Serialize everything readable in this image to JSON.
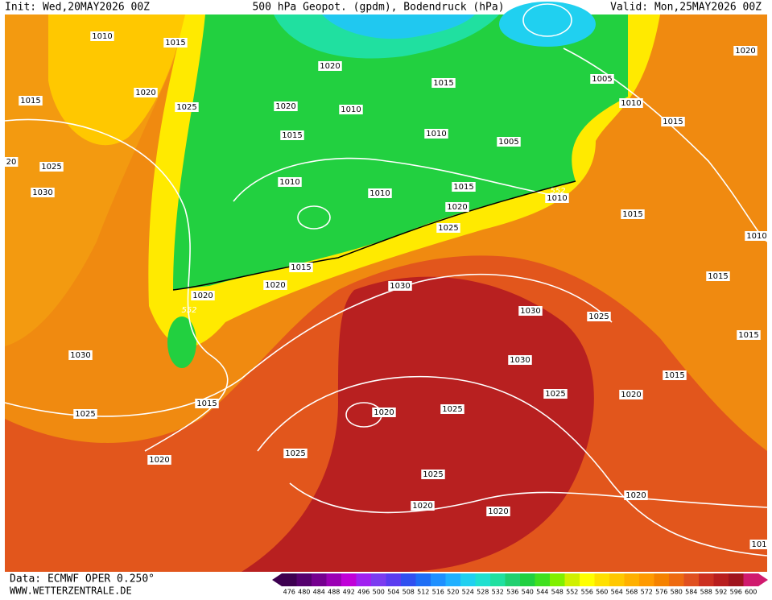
{
  "header": {
    "init": "Init: Wed,20MAY2026 00Z",
    "title": "500 hPa Geopot. (gpdm), Bodendruck (hPa)",
    "valid": "Valid: Mon,25MAY2026 00Z"
  },
  "isobar_labels": [
    1010,
    1015,
    1020,
    1015,
    1025,
    1020,
    1015,
    1020,
    1010,
    1015,
    1010,
    1005,
    1005,
    1010,
    1015,
    1020,
    20,
    1025,
    1030,
    1010,
    1010,
    1015,
    1010,
    1020,
    1025,
    1015,
    1010,
    1015,
    1020,
    1020,
    1030,
    1015,
    1030,
    1025,
    1015,
    1030,
    1015,
    1030,
    1025,
    1020,
    1015,
    1025,
    1020,
    1025,
    1025,
    1020,
    1025,
    1020,
    1020,
    1020,
    101
  ],
  "geopot_labels": [
    552,
    552
  ],
  "scale": {
    "values": [
      476,
      480,
      484,
      488,
      492,
      496,
      500,
      504,
      508,
      512,
      516,
      520,
      524,
      528,
      532,
      536,
      540,
      544,
      548,
      552,
      556,
      560,
      564,
      568,
      572,
      576,
      580,
      584,
      588,
      592,
      596,
      600
    ],
    "colors": [
      "#3d0050",
      "#55006e",
      "#75008f",
      "#9b00b4",
      "#c000d8",
      "#a020f0",
      "#7b3cf0",
      "#5a3cf0",
      "#3050f0",
      "#1e6ef5",
      "#1e90ff",
      "#20b0ff",
      "#20d0f0",
      "#20e0d0",
      "#20e0a0",
      "#20d070",
      "#20d040",
      "#40e020",
      "#80f000",
      "#d0f000",
      "#ffff00",
      "#ffe000",
      "#ffc800",
      "#ffb000",
      "#ff9a00",
      "#f58200",
      "#ee6a10",
      "#e05020",
      "#cc3020",
      "#b81e1e",
      "#a0141e",
      "#d01a6e"
    ]
  },
  "footer": {
    "data": "Data: ECMWF OPER 0.250°",
    "site": "WWW.WETTERZENTRALE.DE"
  }
}
